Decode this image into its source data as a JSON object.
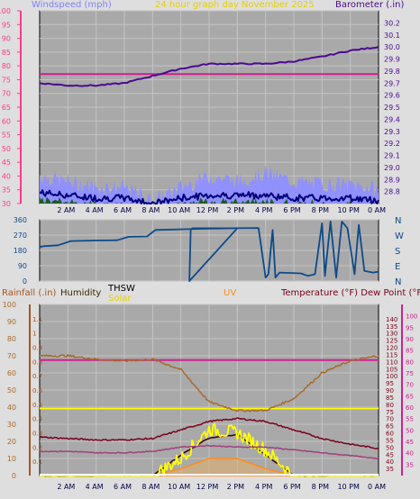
{
  "colors": {
    "bg": "#dedede",
    "plot": "#a9a9a9",
    "grid": "#c4c4c4",
    "wind_axis": "#ff3a8a",
    "barometer": "#4b0a8f",
    "outside_temp": "#d02090",
    "wind_avg": "#00007a",
    "wind_gust": "#9090ff",
    "wind_fill": "#1e5c1e",
    "direction": "#0d4a8a",
    "rain": "#a8541e",
    "humidity": "#a86a2e",
    "thsw": "#3a0000",
    "solar": "#ffff00",
    "uv": "#ff8c1a",
    "temperature": "#7a001a",
    "dewpoint": "#a04080",
    "white": "#ffffff"
  },
  "header": {
    "wind_label": "Windspeed (mph)",
    "graph_label": "24 hour graph day",
    "date_label": "November 2025",
    "baro_label": "Barometer (.in)"
  },
  "direction_panel": {
    "compass": [
      "N",
      "W",
      "S",
      "E",
      "N"
    ]
  },
  "lower_header": {
    "rain_label": "Rainfall (.in)",
    "humidity_label": "Humidity",
    "thsw_label": "THSW",
    "solar_label": "Solar",
    "uv_label": "UV",
    "temp_label": "Temperature (°F) Dew Point (°F)"
  },
  "time_labels": [
    "2 AM",
    "4 AM",
    "6 AM",
    "8 AM",
    "10 AM",
    "12 PM",
    "2 PM",
    "4 PM",
    "6 PM",
    "8 PM",
    "10 PM",
    "0 AM"
  ],
  "chart_data": [
    {
      "type": "line",
      "title": "Windspeed and Barometer",
      "x": [
        "0 AM",
        "2 AM",
        "4 AM",
        "6 AM",
        "8 AM",
        "10 AM",
        "12 PM",
        "2 PM",
        "4 PM",
        "6 PM",
        "8 PM",
        "10 PM",
        "0 AM"
      ],
      "y_left": {
        "label": "Windspeed (mph)",
        "range": [
          30,
          100
        ],
        "ticks": [
          30,
          35,
          40,
          45,
          50,
          55,
          60,
          65,
          70,
          75,
          80,
          85,
          90,
          95,
          100
        ]
      },
      "y_right": {
        "label": "Barometer (.in)",
        "range": [
          28.7,
          30.3
        ],
        "ticks": [
          28.8,
          28.9,
          29.0,
          29.1,
          29.2,
          29.3,
          29.4,
          29.5,
          29.6,
          29.7,
          29.8,
          29.9,
          30.0,
          30.1,
          30.2
        ]
      },
      "series": [
        {
          "name": "Barometer (.in)",
          "axis": "right",
          "values": [
            29.7,
            29.68,
            29.68,
            29.7,
            29.76,
            29.82,
            29.86,
            29.86,
            29.86,
            29.88,
            29.92,
            29.97,
            30.0
          ]
        },
        {
          "name": "Outside temperature",
          "axis": "left",
          "values": [
            77,
            77,
            77,
            77,
            77,
            77,
            77,
            77,
            77,
            77,
            77,
            77,
            77
          ]
        },
        {
          "name": "Wind gust",
          "axis": "left",
          "values": [
            40,
            38,
            36,
            36,
            31,
            36,
            40,
            38,
            41,
            38,
            37,
            37,
            35
          ]
        },
        {
          "name": "Wind average",
          "axis": "left",
          "values": [
            34,
            33,
            32,
            32,
            30,
            32,
            33,
            33,
            33,
            32,
            32,
            32,
            31
          ]
        }
      ]
    },
    {
      "type": "line",
      "title": "Wind direction",
      "x": [
        "0 AM",
        "2 AM",
        "4 AM",
        "6 AM",
        "8 AM",
        "10 AM",
        "12 PM",
        "2 PM",
        "4 PM",
        "6 PM",
        "8 PM",
        "10 PM",
        "0 AM"
      ],
      "y": {
        "range": [
          0,
          360
        ],
        "ticks": [
          0,
          45,
          90,
          135,
          180,
          225,
          270,
          315,
          360
        ]
      },
      "series": [
        {
          "name": "Wind direction",
          "values": [
            200,
            250,
            260,
            262,
            312,
            315,
            318,
            318,
            320,
            50,
            40,
            350,
            60
          ]
        }
      ]
    },
    {
      "type": "line",
      "title": "Rainfall, Humidity, THSW, Solar, UV, Temperature, Dew Point",
      "x": [
        "0 AM",
        "2 AM",
        "4 AM",
        "6 AM",
        "8 AM",
        "10 AM",
        "12 PM",
        "2 PM",
        "4 PM",
        "6 PM",
        "8 PM",
        "10 PM",
        "0 AM"
      ],
      "axes": {
        "rain": {
          "label": "Rainfall (.in)",
          "range": [
            0,
            1.2
          ],
          "ticks": [
            0.1,
            0.2,
            0.3,
            0.4,
            0.5,
            0.6,
            0.7,
            0.8,
            0.9,
            1,
            1.1
          ]
        },
        "humidity": {
          "label": "Humidity",
          "range": [
            0,
            100
          ],
          "ticks": [
            0,
            10,
            20,
            30,
            40,
            50,
            60,
            70,
            80,
            90,
            100
          ]
        },
        "temperature": {
          "label": "Temperature (°F)",
          "range": [
            30,
            150
          ],
          "ticks": [
            35,
            40,
            45,
            50,
            55,
            60,
            65,
            70,
            75,
            80,
            85,
            90,
            95,
            100,
            105,
            110,
            115,
            120,
            125,
            130,
            135,
            140
          ]
        }
      },
      "right_scale2_ticks": [
        35,
        40,
        45,
        50,
        55,
        60,
        65,
        70,
        75,
        80,
        85,
        90,
        95,
        100
      ],
      "series": [
        {
          "name": "Humidity",
          "axis": "humidity",
          "values": [
            70,
            70,
            68,
            67,
            68,
            62,
            43,
            38,
            38,
            45,
            60,
            67,
            70
          ]
        },
        {
          "name": "Temperature",
          "axis": "temperature",
          "values": [
            57,
            56,
            55,
            55,
            56,
            62,
            68,
            70,
            68,
            62,
            56,
            52,
            49
          ]
        },
        {
          "name": "Dew Point",
          "axis": "temperature",
          "values": [
            47,
            47,
            46,
            46,
            47,
            50,
            51,
            50,
            50,
            48,
            46,
            44,
            42
          ]
        },
        {
          "name": "Outside temperature",
          "axis": "temperature",
          "values": [
            111,
            111,
            111,
            111,
            111,
            111,
            111,
            111,
            111,
            111,
            111,
            111,
            111
          ]
        },
        {
          "name": "Rainfall (.in)",
          "axis": "rain",
          "values": [
            0.47,
            0.47,
            0.47,
            0.47,
            0.47,
            0.47,
            0.47,
            0.47,
            0.47,
            0.47,
            0.47,
            0.47,
            0.47
          ]
        },
        {
          "name": "Solar",
          "axis": "humidity",
          "values": [
            0,
            0,
            0,
            0,
            0,
            10,
            27,
            25,
            15,
            0,
            0,
            0,
            0
          ]
        },
        {
          "name": "UV",
          "axis": "humidity",
          "values": [
            0,
            0,
            0,
            0,
            0,
            4,
            10,
            10,
            4,
            0,
            0,
            0,
            0
          ]
        },
        {
          "name": "THSW",
          "axis": "humidity",
          "values": [
            0,
            0,
            0,
            0,
            0,
            12,
            22,
            24,
            12,
            0,
            0,
            0,
            0
          ]
        }
      ]
    }
  ]
}
